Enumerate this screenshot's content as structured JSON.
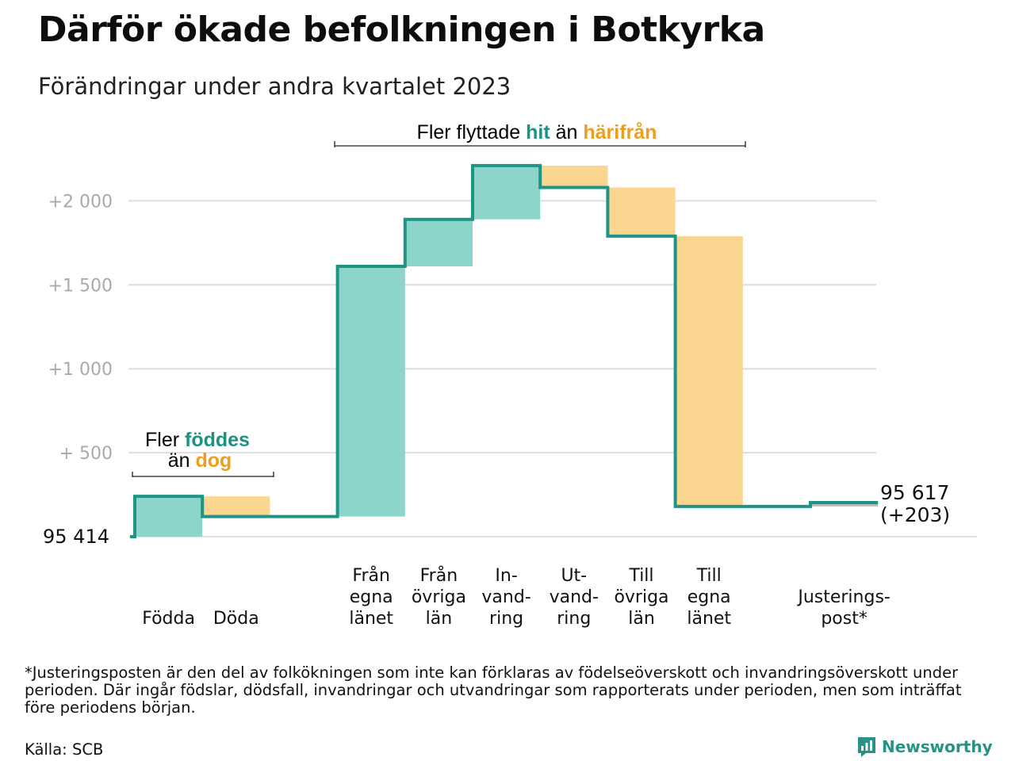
{
  "header": {
    "title": "Därför ökade befolkningen i Botkyrka",
    "subtitle": "Förändringar under andra kvartalet 2023"
  },
  "colors": {
    "inflow": "#8dd4cb",
    "outflow": "#fad690",
    "line": "#1f9385",
    "teal_text": "#1a9384",
    "orange_text": "#ef9d1f",
    "grid": "#dddddd",
    "tick": "#aaaaaa",
    "adjustment": "#bbbbbb"
  },
  "annotations": {
    "births": {
      "prefix": "Fler ",
      "hi": "föddes",
      "line2_prefix": "än ",
      "lo": "dog"
    },
    "moves": {
      "prefix": "Fler flyttade ",
      "hi": "hit",
      "mid": " än ",
      "lo": "härifrån"
    }
  },
  "end_label": {
    "value": "95 617",
    "change": "(+203)"
  },
  "footnote": "*Justeringsposten är den del av folkökningen som inte kan förklaras av födelseöverskott och invandringsöverskott under perioden. Där ingår födslar, dödsfall, invandringar och utvandringar som rapporterats under perioden, men som inträffat före periodens början.",
  "source": "Källa: SCB",
  "brand": "Newsworthy",
  "chart_data": {
    "type": "waterfall",
    "base_value": 95414,
    "base_label": "95  414",
    "end_value": 95617,
    "y_ticks": [
      {
        "value": 500,
        "label": "+  500"
      },
      {
        "value": 1000,
        "label": "+1  000"
      },
      {
        "value": 1500,
        "label": "+1  500"
      },
      {
        "value": 2000,
        "label": "+2  000"
      }
    ],
    "ylim": [
      0,
      2200
    ],
    "grid": true,
    "steps": [
      {
        "label": [
          "Födda"
        ],
        "kind": "in",
        "from": 0,
        "to": 240
      },
      {
        "label": [
          "Döda"
        ],
        "kind": "out",
        "from": 240,
        "to": 120
      },
      {
        "label": [],
        "kind": "gap",
        "from": 120,
        "to": 120
      },
      {
        "label": [
          "Från",
          "egna",
          "länet"
        ],
        "kind": "in",
        "from": 120,
        "to": 1610
      },
      {
        "label": [
          "Från",
          "övriga",
          "län"
        ],
        "kind": "in",
        "from": 1610,
        "to": 1890
      },
      {
        "label": [
          "In-",
          "vand-",
          "ring"
        ],
        "kind": "in",
        "from": 1890,
        "to": 2210
      },
      {
        "label": [
          "Ut-",
          "vand-",
          "ring"
        ],
        "kind": "out",
        "from": 2210,
        "to": 2080
      },
      {
        "label": [
          "Till",
          "övriga",
          "län"
        ],
        "kind": "out",
        "from": 2080,
        "to": 1790
      },
      {
        "label": [
          "Till",
          "egna",
          "länet"
        ],
        "kind": "out",
        "from": 1790,
        "to": 180
      },
      {
        "label": [],
        "kind": "gap",
        "from": 180,
        "to": 180
      },
      {
        "label": [
          "Justerings-",
          "post*"
        ],
        "kind": "adj",
        "from": 180,
        "to": 203
      }
    ]
  }
}
